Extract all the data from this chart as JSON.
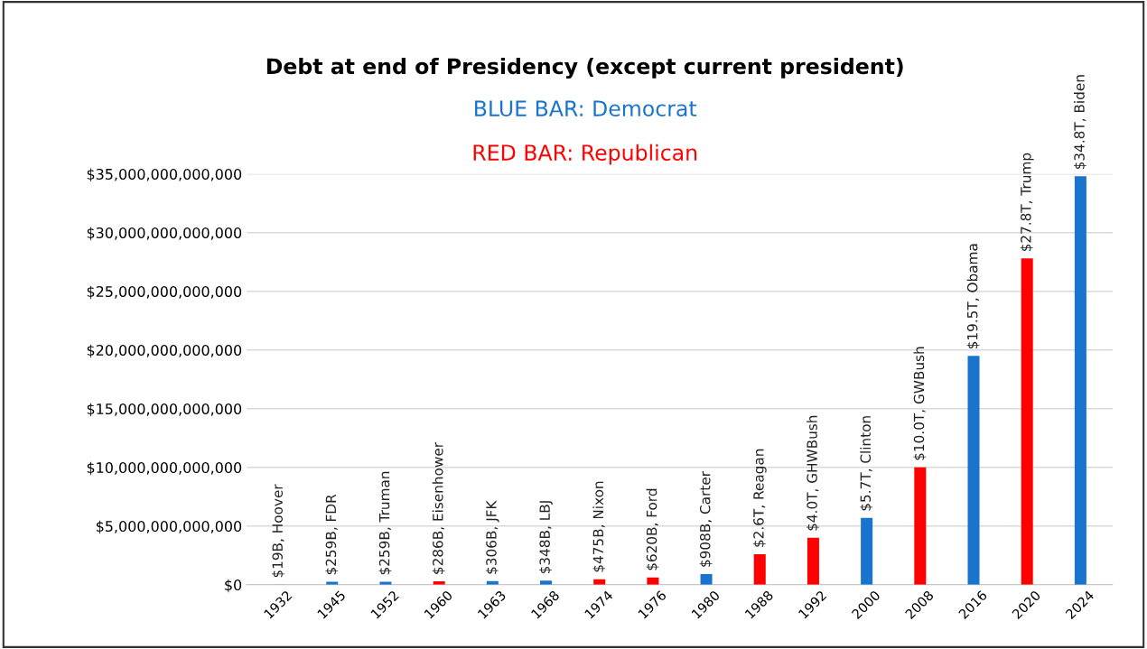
{
  "chart_data": {
    "type": "bar",
    "title": "Debt at end of Presidency (except current president)",
    "categories": [
      "1932",
      "1945",
      "1952",
      "1960",
      "1963",
      "1968",
      "1974",
      "1976",
      "1980",
      "1988",
      "1992",
      "2000",
      "2008",
      "2016",
      "2020",
      "2024"
    ],
    "series": [
      {
        "name": "BLUE BAR: Democrat",
        "color": "#1874cd",
        "values": [
          null,
          259000000000,
          259000000000,
          null,
          306000000000,
          348000000000,
          null,
          null,
          908000000000,
          null,
          null,
          5700000000000,
          null,
          19500000000000,
          null,
          34800000000000
        ],
        "value_labels": [
          null,
          "$259B, FDR",
          "$259B, Truman",
          null,
          "$306B, JFK",
          "$348B, LBJ",
          null,
          null,
          "$908B, Carter",
          null,
          null,
          "$5.7T, Clinton",
          null,
          "$19.5T, Obama",
          null,
          "$34.8T, Biden"
        ]
      },
      {
        "name": "RED BAR: Republican",
        "color": "#ff0000",
        "colors": [
          "#f07f3c",
          "#ff0000",
          "#ff0000",
          "#ff0000",
          "#ff0000",
          "#ff0000",
          "#ff0000",
          "#ff0000",
          "#ff0000",
          "#ff0000",
          "#ff0000",
          "#ff0000",
          "#ff0000",
          "#ff0000",
          "#ff0000",
          "#ff0000"
        ],
        "values": [
          19000000000,
          null,
          null,
          286000000000,
          null,
          null,
          475000000000,
          620000000000,
          null,
          2600000000000,
          4000000000000,
          null,
          10000000000000,
          null,
          27800000000000,
          null
        ],
        "value_labels": [
          "$19B, Hoover",
          null,
          null,
          "$286B, Eisenhower",
          null,
          null,
          "$475B, Nixon",
          "$620B, Ford",
          null,
          "$2.6T, Reagan",
          "$4.0T, GHWBush",
          null,
          "$10.0T, GWBush",
          null,
          "$27.8T, Trump",
          null
        ]
      }
    ],
    "ylim": [
      0,
      35000000000000
    ],
    "yticks": [
      {
        "value": 0,
        "label": "$0"
      },
      {
        "value": 5000000000000,
        "label": "$5,000,000,000,000"
      },
      {
        "value": 10000000000000,
        "label": "$10,000,000,000,000"
      },
      {
        "value": 15000000000000,
        "label": "$15,000,000,000,000"
      },
      {
        "value": 20000000000000,
        "label": "$20,000,000,000,000"
      },
      {
        "value": 25000000000000,
        "label": "$25,000,000,000,000"
      },
      {
        "value": 30000000000000,
        "label": "$30,000,000,000,000"
      },
      {
        "value": 35000000000000,
        "label": "$35,000,000,000,000"
      }
    ],
    "grid": "y",
    "legend": "top"
  }
}
